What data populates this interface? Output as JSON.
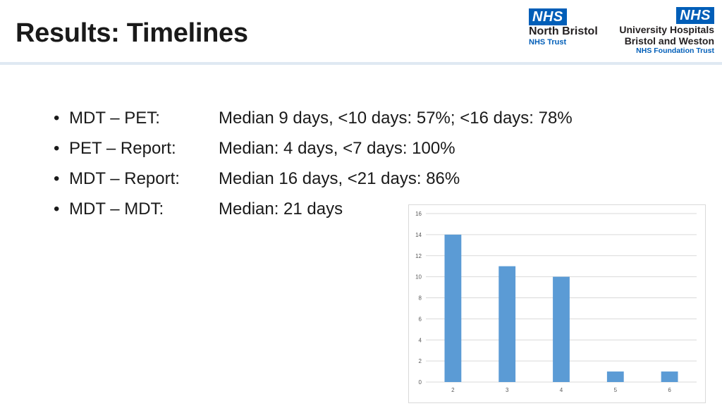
{
  "slide": {
    "title": "Results: Timelines"
  },
  "logos": {
    "north_bristol": {
      "badge": "NHS",
      "line1": "North Bristol",
      "line2": "NHS Trust"
    },
    "uhbw": {
      "badge": "NHS",
      "line1a": "University Hospitals",
      "line1b": "Bristol and Weston",
      "line2": "NHS Foundation Trust"
    }
  },
  "bullets": [
    {
      "label": "MDT – PET:",
      "value": "Median 9 days, <10 days: 57%; <16 days: 78%"
    },
    {
      "label": "PET – Report:",
      "value": "Median: 4 days, <7 days: 100%"
    },
    {
      "label": "MDT – Report:",
      "value": "Median 16 days, <21 days: 86%"
    },
    {
      "label": "MDT – MDT:",
      "value": "Median: 21 days"
    }
  ],
  "chart_data": {
    "type": "bar",
    "categories": [
      "2",
      "3",
      "4",
      "5",
      "6"
    ],
    "values": [
      14,
      11,
      10,
      1,
      1
    ],
    "title": "",
    "xlabel": "",
    "ylabel": "",
    "ylim": [
      0,
      16
    ],
    "yticks": [
      0,
      2,
      4,
      6,
      8,
      10,
      12,
      14,
      16
    ],
    "grid": true,
    "bar_color": "#5b9bd5",
    "grid_color": "#d9d9d9",
    "legend": "none"
  }
}
